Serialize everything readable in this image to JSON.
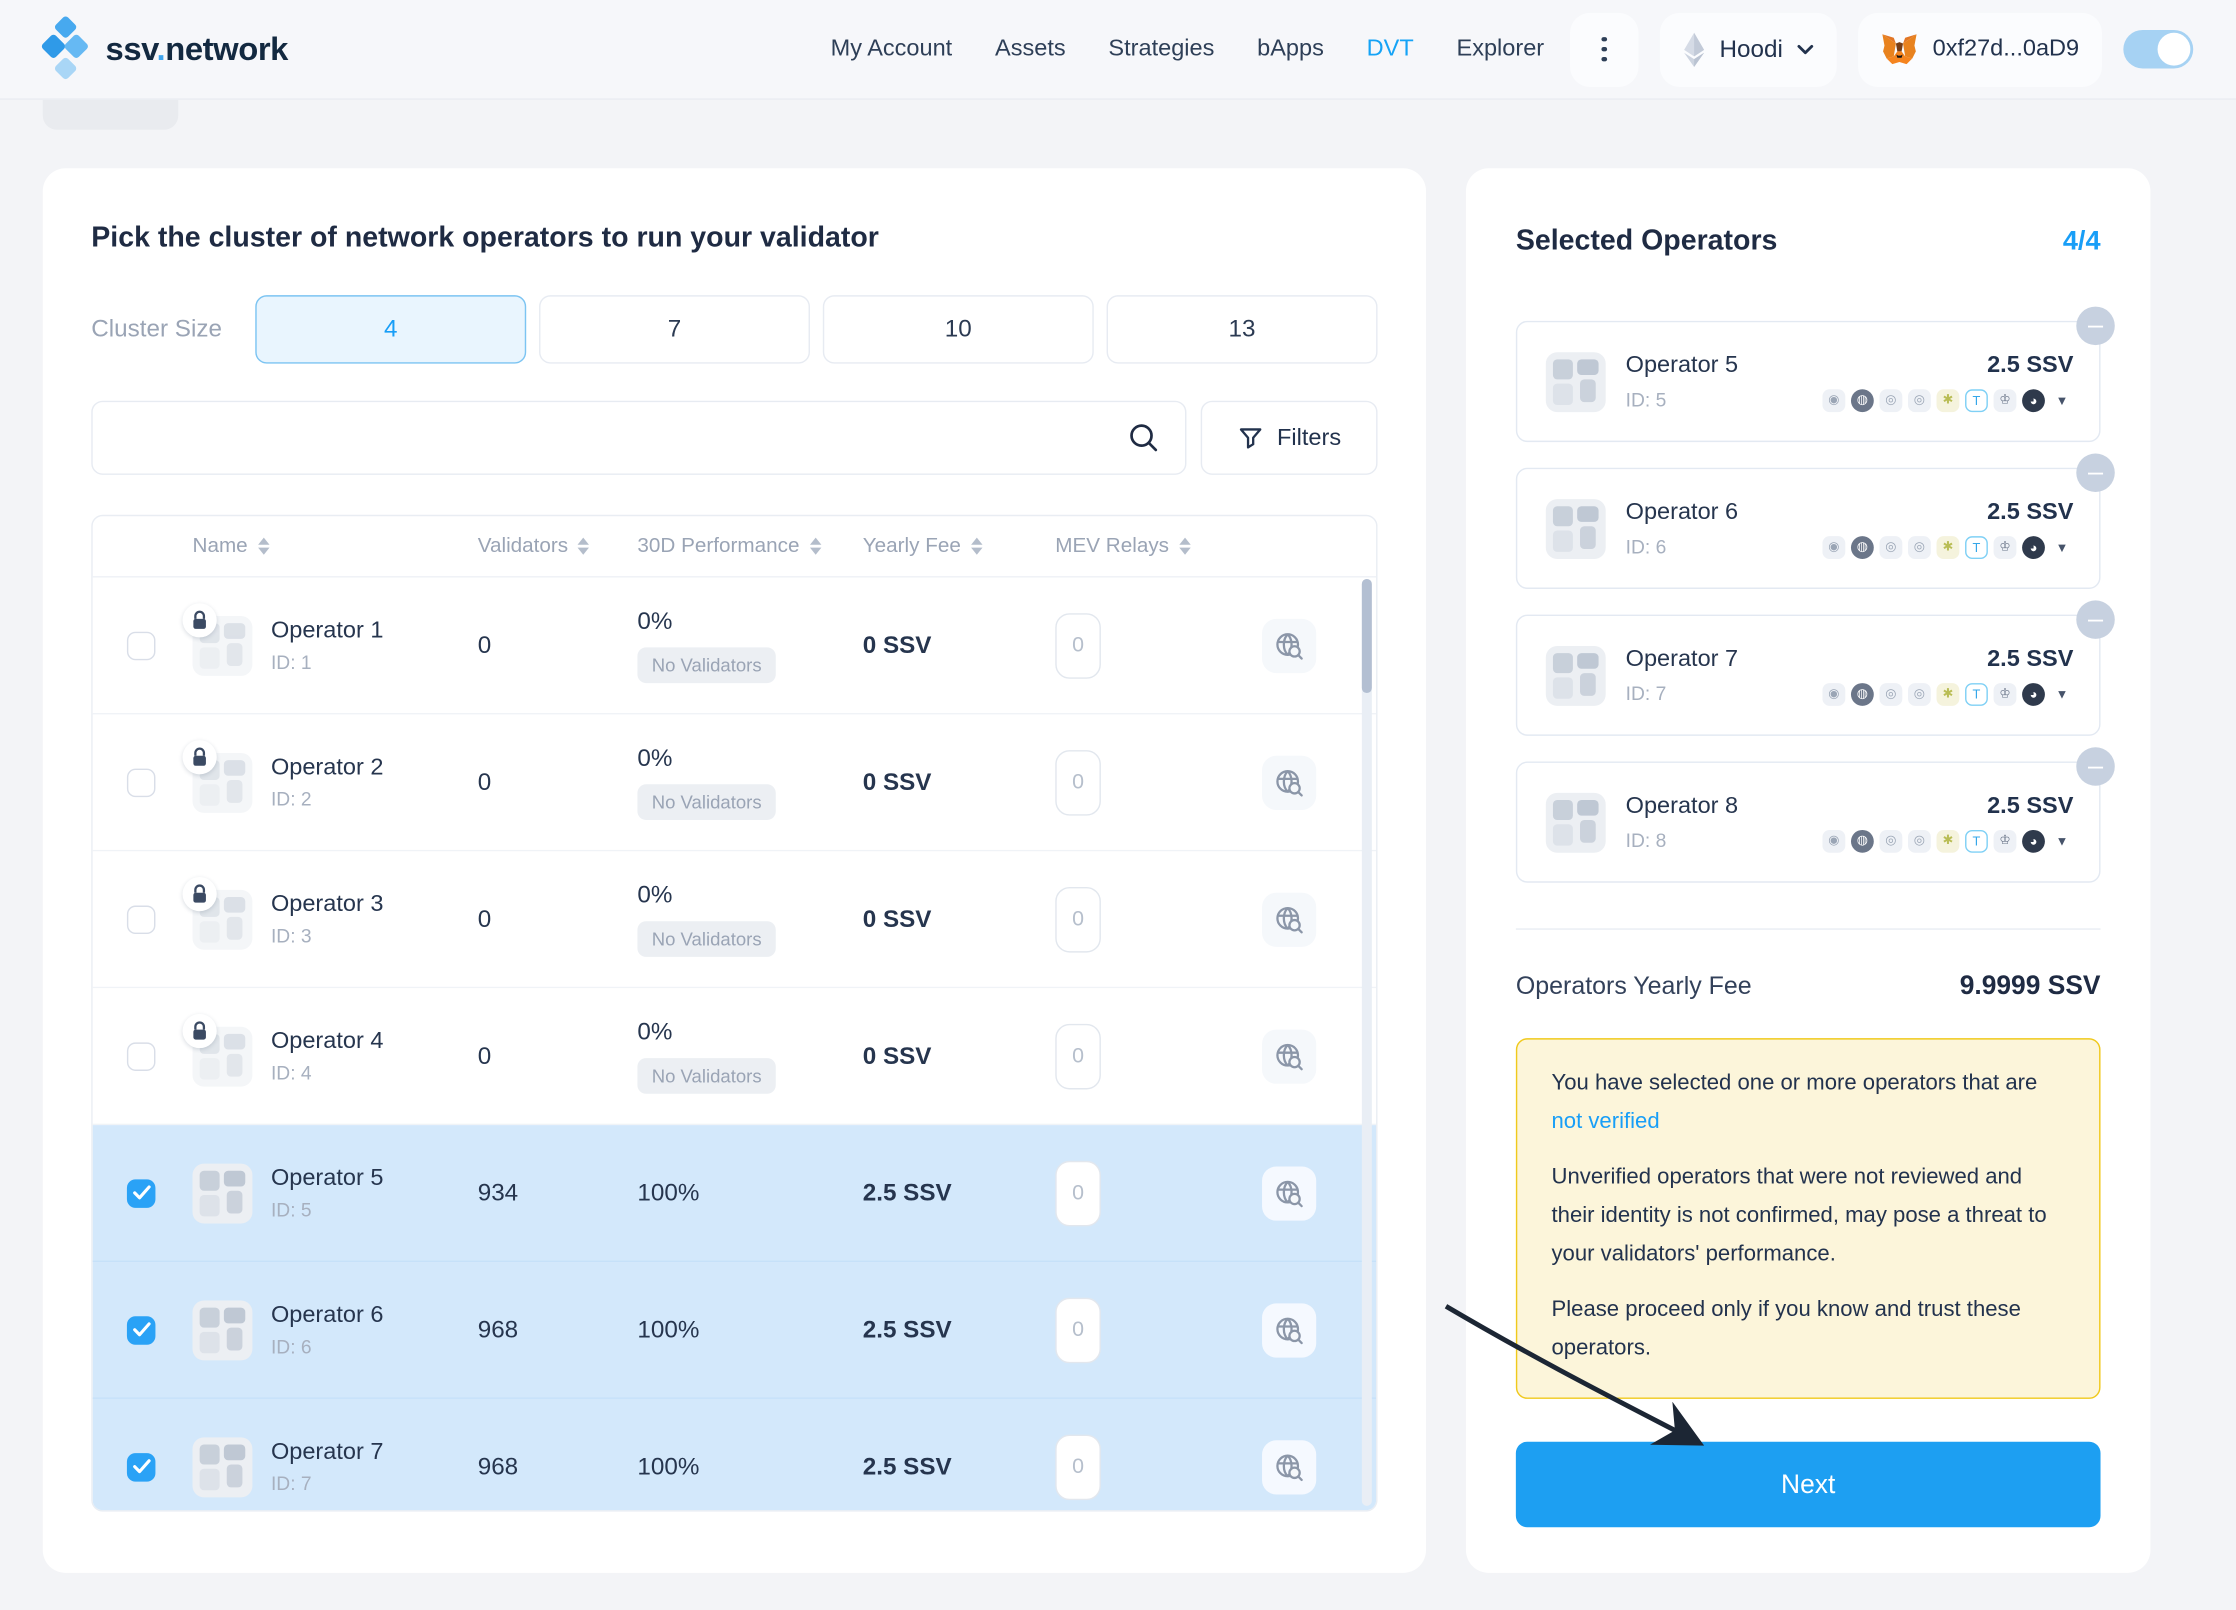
{
  "nav": {
    "logo": {
      "part1": "ssv",
      "dot": ".",
      "part2": "network"
    },
    "items": [
      {
        "label": "My Account"
      },
      {
        "label": "Assets"
      },
      {
        "label": "Strategies"
      },
      {
        "label": "bApps"
      },
      {
        "label": "DVT",
        "active": true
      },
      {
        "label": "Explorer"
      }
    ],
    "network": {
      "name": "Hoodi"
    },
    "wallet": {
      "address": "0xf27d...0aD9"
    }
  },
  "main": {
    "title": "Pick the cluster of network operators to run your validator",
    "cluster": {
      "label": "Cluster Size",
      "options": [
        "4",
        "7",
        "10",
        "13"
      ],
      "selected": "4"
    },
    "search": {
      "placeholder": ""
    },
    "filters_label": "Filters",
    "table": {
      "columns": [
        {
          "label": "Name"
        },
        {
          "label": "Validators"
        },
        {
          "label": "30D Performance"
        },
        {
          "label": "Yearly Fee"
        },
        {
          "label": "MEV Relays"
        }
      ],
      "rows": [
        {
          "name": "Operator 1",
          "id": "ID: 1",
          "validators": "0",
          "performance": "0%",
          "badge": "No Validators",
          "fee": "0 SSV",
          "mev": "0",
          "locked": true,
          "selected": false
        },
        {
          "name": "Operator 2",
          "id": "ID: 2",
          "validators": "0",
          "performance": "0%",
          "badge": "No Validators",
          "fee": "0 SSV",
          "mev": "0",
          "locked": true,
          "selected": false
        },
        {
          "name": "Operator 3",
          "id": "ID: 3",
          "validators": "0",
          "performance": "0%",
          "badge": "No Validators",
          "fee": "0 SSV",
          "mev": "0",
          "locked": true,
          "selected": false
        },
        {
          "name": "Operator 4",
          "id": "ID: 4",
          "validators": "0",
          "performance": "0%",
          "badge": "No Validators",
          "fee": "0 SSV",
          "mev": "0",
          "locked": true,
          "selected": false
        },
        {
          "name": "Operator 5",
          "id": "ID: 5",
          "validators": "934",
          "performance": "100%",
          "badge": "",
          "fee": "2.5 SSV",
          "mev": "0",
          "locked": false,
          "selected": true
        },
        {
          "name": "Operator 6",
          "id": "ID: 6",
          "validators": "968",
          "performance": "100%",
          "badge": "",
          "fee": "2.5 SSV",
          "mev": "0",
          "locked": false,
          "selected": true
        },
        {
          "name": "Operator 7",
          "id": "ID: 7",
          "validators": "968",
          "performance": "100%",
          "badge": "",
          "fee": "2.5 SSV",
          "mev": "0",
          "locked": false,
          "selected": true
        }
      ]
    }
  },
  "sidebar": {
    "title": "Selected Operators",
    "count": "4/4",
    "operators": [
      {
        "name": "Operator 5",
        "id": "ID: 5",
        "fee": "2.5 SSV"
      },
      {
        "name": "Operator 6",
        "id": "ID: 6",
        "fee": "2.5 SSV"
      },
      {
        "name": "Operator 7",
        "id": "ID: 7",
        "fee": "2.5 SSV"
      },
      {
        "name": "Operator 8",
        "id": "ID: 8",
        "fee": "2.5 SSV"
      }
    ],
    "relay_icons": [
      {
        "name": "relay-1",
        "glyph": "◉",
        "bg": "#eef1f6",
        "color": "#9aa5b5"
      },
      {
        "name": "relay-2",
        "glyph": "◍",
        "bg": "#6b7689",
        "color": "#ffffff",
        "round": true
      },
      {
        "name": "relay-3",
        "glyph": "◎",
        "bg": "#eef1f6",
        "color": "#9aa5b5"
      },
      {
        "name": "relay-4",
        "glyph": "◎",
        "bg": "#eef1f6",
        "color": "#9aa5b5"
      },
      {
        "name": "relay-5",
        "glyph": "✱",
        "bg": "#f5f3dd",
        "color": "#b9bd55"
      },
      {
        "name": "relay-6",
        "glyph": "T",
        "bg": "#ffffff",
        "color": "#35a7e9",
        "border": "#7fd0f5"
      },
      {
        "name": "relay-7",
        "glyph": "♔",
        "bg": "#eef1f6",
        "color": "#6b7689"
      },
      {
        "name": "relay-8",
        "glyph": "◕",
        "bg": "#2f3a4c",
        "color": "#ffffff",
        "round": true
      },
      {
        "name": "relay-9",
        "glyph": "▼",
        "bg": "transparent",
        "color": "#46536a"
      }
    ],
    "fee_label": "Operators Yearly Fee",
    "fee_value": "9.9999 SSV",
    "warning": {
      "line1": "You have selected one or more operators that are",
      "link_text": "not verified",
      "para2": "Unverified operators that were not reviewed and their identity is not confirmed, may pose a threat to your validators' performance.",
      "para3": "Please proceed only if you know and trust these operators."
    },
    "next_label": "Next"
  },
  "colors": {
    "accent": "#1BA0F8",
    "selected_row_bg": "#D3E8FB",
    "warning_bg": "#FCF5DA",
    "warning_border": "#F0C91C",
    "next_button": "#1D9FF2"
  }
}
